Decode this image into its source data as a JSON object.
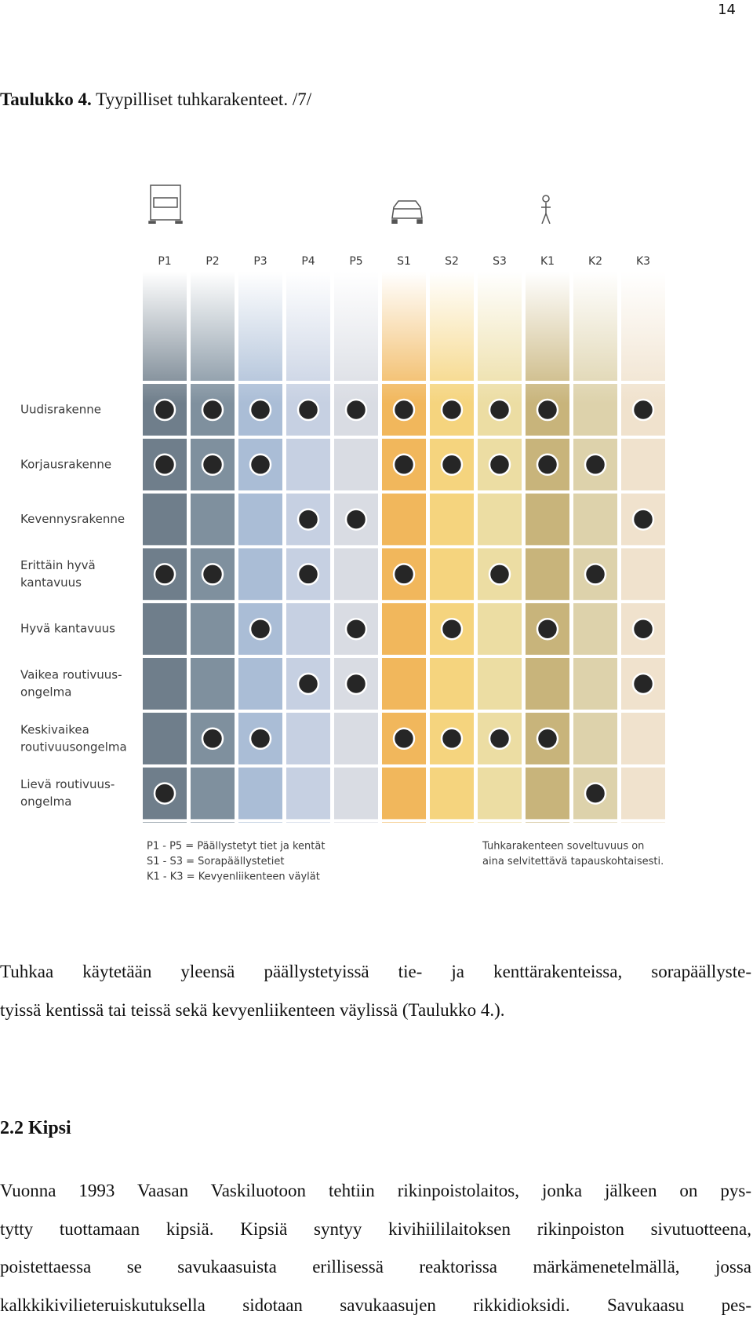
{
  "page_number": "14",
  "caption": {
    "label": "Taulukko 4.",
    "text": "Tyypilliset tuhkarakenteet. /7/"
  },
  "figure": {
    "columns": [
      {
        "code": "P1",
        "color": "#6f7e8b"
      },
      {
        "code": "P2",
        "color": "#7f909e"
      },
      {
        "code": "P3",
        "color": "#aabdd6"
      },
      {
        "code": "P4",
        "color": "#c6d0e2"
      },
      {
        "code": "P5",
        "color": "#d9dce3"
      },
      {
        "code": "S1",
        "color": "#f1b75c"
      },
      {
        "code": "S2",
        "color": "#f5d47e"
      },
      {
        "code": "S3",
        "color": "#ecdda3"
      },
      {
        "code": "K1",
        "color": "#c8b47b"
      },
      {
        "code": "K2",
        "color": "#ddd2ab"
      },
      {
        "code": "K3",
        "color": "#f0e2cd"
      }
    ],
    "rows": [
      {
        "label": [
          "Uudisrakenne"
        ],
        "cells": [
          true,
          true,
          true,
          true,
          true,
          true,
          true,
          true,
          true,
          false,
          true
        ]
      },
      {
        "label": [
          "Korjausrakenne"
        ],
        "cells": [
          true,
          true,
          true,
          false,
          false,
          true,
          true,
          true,
          true,
          true,
          false
        ]
      },
      {
        "label": [
          "Kevennysrakenne"
        ],
        "cells": [
          false,
          false,
          false,
          true,
          true,
          false,
          false,
          false,
          false,
          false,
          true
        ]
      },
      {
        "label": [
          "Erittäin hyvä",
          "kantavuus"
        ],
        "cells": [
          true,
          true,
          false,
          true,
          false,
          true,
          false,
          true,
          false,
          true,
          false
        ]
      },
      {
        "label": [
          "Hyvä kantavuus"
        ],
        "cells": [
          false,
          false,
          true,
          false,
          true,
          false,
          true,
          false,
          true,
          false,
          true
        ]
      },
      {
        "label": [
          "Vaikea routivuus-",
          "ongelma"
        ],
        "cells": [
          false,
          false,
          false,
          true,
          true,
          false,
          false,
          false,
          false,
          false,
          true
        ]
      },
      {
        "label": [
          "Keskivaikea",
          "routivuusongelma"
        ],
        "cells": [
          false,
          true,
          true,
          false,
          false,
          true,
          true,
          true,
          true,
          false,
          false
        ]
      },
      {
        "label": [
          "Lievä routivuus-",
          "ongelma"
        ],
        "cells": [
          true,
          false,
          false,
          false,
          false,
          false,
          false,
          false,
          false,
          true,
          false
        ]
      }
    ],
    "legend_left": [
      "P1 - P5 = Päällystetyt tiet ja kentät",
      "S1 - S3 = Sorapäällystetiet",
      "K1 - K3 = Kevyenliikenteen väylät"
    ],
    "legend_right": [
      "Tuhkarakenteen soveltuvuus on",
      "aina selvitettävä tapauskohtaisesti."
    ]
  },
  "paragraph_1": [
    "Tuhkaa käytetään yleensä päällystetyissä tie- ja kenttärakenteissa, sorapäällyste-",
    "tyissä kentissä tai teissä sekä kevyenliikenteen väylissä (Taulukko 4.)."
  ],
  "heading": "2.2 Kipsi",
  "paragraph_2": [
    "Vuonna 1993 Vaasan Vaskiluotoon tehtiin rikinpoistolaitos, jonka jälkeen on pys-",
    "tytty tuottamaan kipsiä. Kipsiä syntyy kivihiililaitoksen rikinpoiston sivutuotteena,",
    "poistettaessa se savukaasuista erillisessä reaktorissa märkämenetelmällä, jossa",
    "kalkkikivilieteruiskutuksella sidotaan savukaasujen rikkidioksidi. Savukaasu pes-"
  ]
}
